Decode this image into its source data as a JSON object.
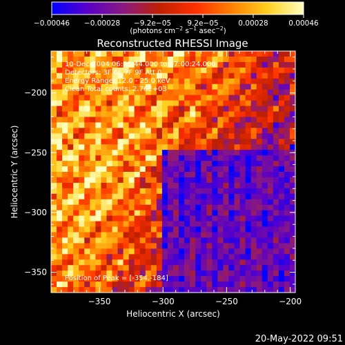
{
  "chart_data": {
    "type": "heatmap",
    "title": "Reconstructed RHESSI Image",
    "xlabel": "Heliocentric X (arcsec)",
    "ylabel": "Heliocentric Y (arcsec)",
    "xlim": [
      -388,
      -196
    ],
    "ylim": [
      -367,
      -165
    ],
    "x_ticks": [
      -350,
      -300,
      -250,
      -200
    ],
    "y_ticks": [
      -200,
      -250,
      -300,
      -350
    ],
    "x_tick_labels": [
      "−350",
      "−300",
      "−250",
      "−200"
    ],
    "y_tick_labels": [
      "−200",
      "−250",
      "−300",
      "−350"
    ],
    "colorbar": {
      "range": [
        -0.00046,
        0.00046
      ],
      "tick_labels": [
        "−0.00046",
        "−0.00028",
        "−9.2e−05",
        "9.2e−05",
        "0.00028",
        "0.00046"
      ],
      "unit_main": "(photons cm",
      "unit_sup1": "−2",
      "unit_s": " s",
      "unit_sup2": "−1",
      "unit_asec": " asec",
      "unit_sup3": "−2",
      "unit_close": ")",
      "colormap": [
        "#0000ff",
        "#5a00c8",
        "#8a1a80",
        "#c02000",
        "#ff3000",
        "#ff8000",
        "#ffd020",
        "#ffffc0"
      ]
    },
    "annotations": [
      "10-Dec-2004 06:55:44.000 to 07:00:24.000",
      "Detectors: 3F 6F 7F 9F  Att 0",
      "Energy Range: 12.0 - 25.0 keV",
      "Clean    Total counts: 2.76E+03"
    ],
    "peak_label": "Position of Peak = [-354,-184]"
  },
  "timestamp": "20-May-2022 09:51"
}
